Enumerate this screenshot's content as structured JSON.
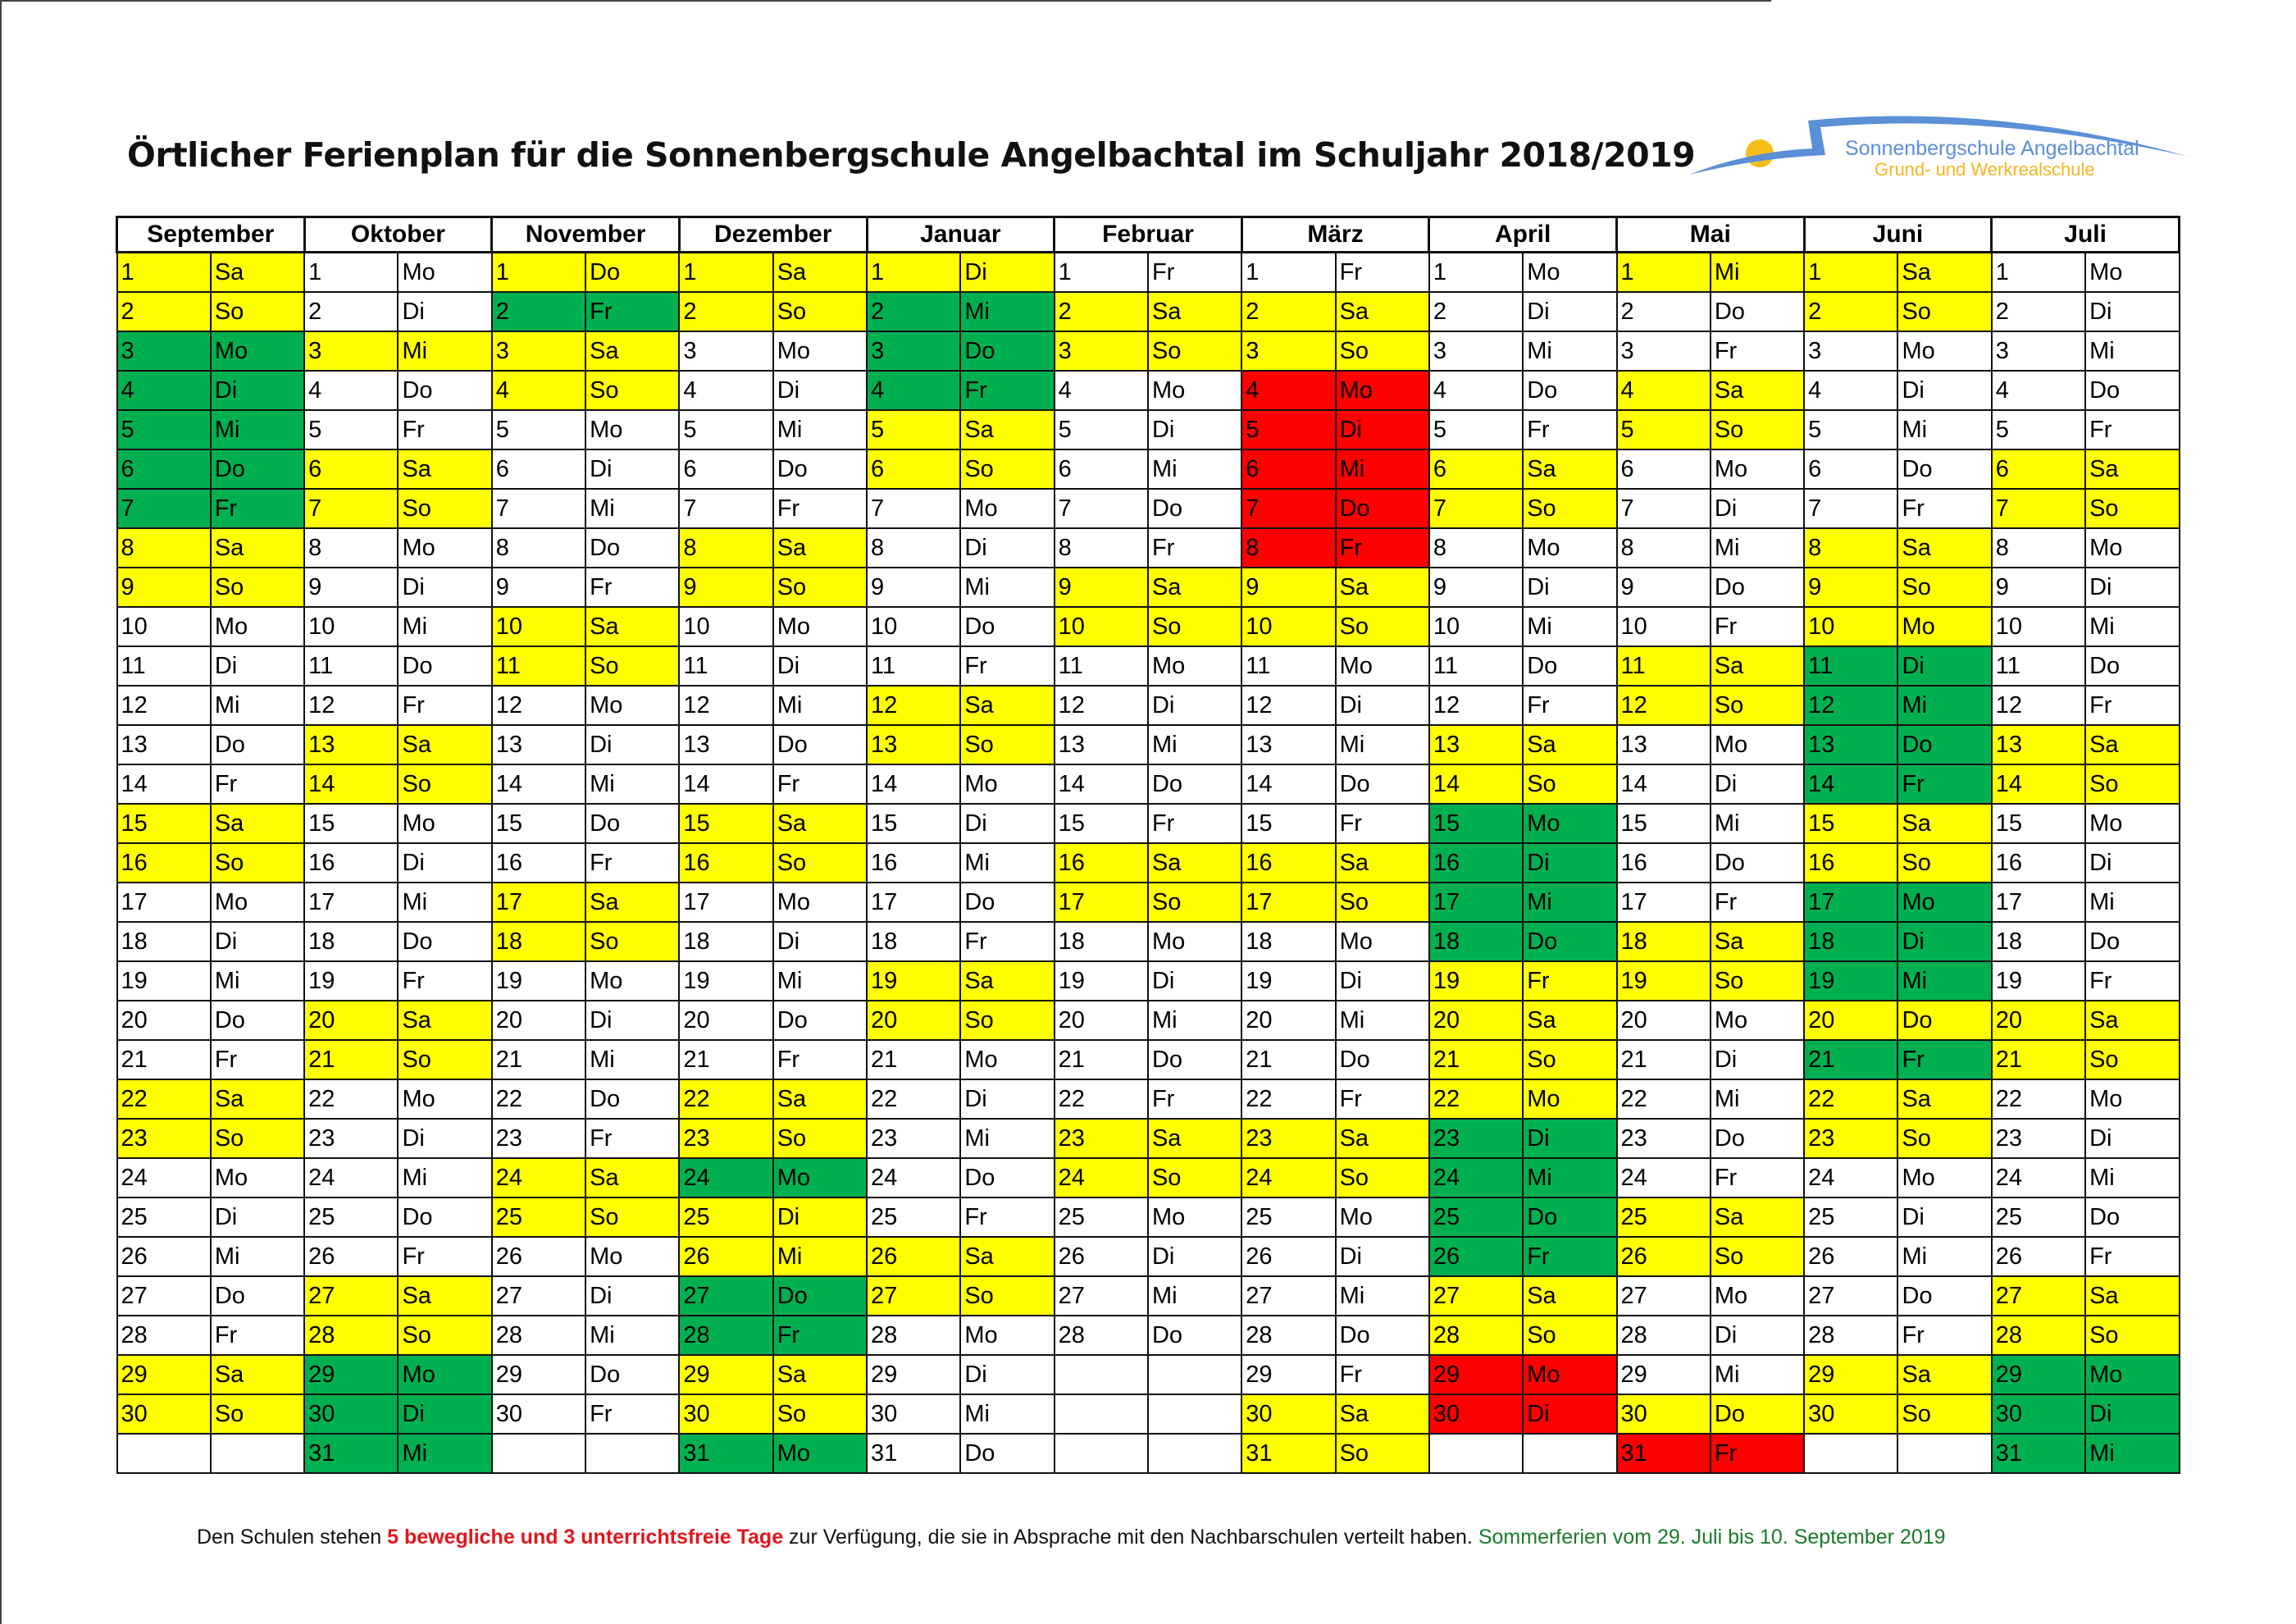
{
  "title": "Örtlicher Ferienplan für die Sonnenbergschule Angelbachtal im Schuljahr 2018/2019",
  "logo": {
    "line1": "Sonnenbergschule Angelbachtal",
    "line2": "Grund- und Werkrealschule"
  },
  "colors": {
    "Y": "#ffff00",
    "G": "#00b050",
    "R": "#ff0000",
    "W": "#ffffff"
  },
  "months": [
    {
      "name": "September",
      "start": "Sa",
      "days": 30,
      "colors": "YYGGGGGYYWWWWWYYWWWWWYYWWWWWYY"
    },
    {
      "name": "Oktober",
      "start": "Mo",
      "days": 31,
      "colors": "WWYWWYYWWWWWYYWWWWWYYWWWWWYYGGG"
    },
    {
      "name": "November",
      "start": "Do",
      "days": 30,
      "colors": "YGYYWWWWWYYWWWWWYYWWWWWYYWWWWW"
    },
    {
      "name": "Dezember",
      "start": "Sa",
      "days": 31,
      "colors": "YYWWWWWYYWWWWWYYWWWWWYYGYYGGYYG"
    },
    {
      "name": "Januar",
      "start": "Di",
      "days": 31,
      "colors": "YGGGYYWWWWWYYWWWWWYYWWWWWYYWWWW"
    },
    {
      "name": "Februar",
      "start": "Fr",
      "days": 28,
      "colors": "WYYWWWWWYYWWWWWYYWWWWWYYWWWW"
    },
    {
      "name": "März",
      "start": "Fr",
      "days": 31,
      "colors": "WYYRRRRRYYWWWWWYYWWWWWYYWWWWWYY"
    },
    {
      "name": "April",
      "start": "Mo",
      "days": 30,
      "colors": "WWWWWYYWWWWWYYGGGGYYYYGGGGYYRR"
    },
    {
      "name": "Mai",
      "start": "Mi",
      "days": 31,
      "colors": "YWWYYWWWWWYYWWWWWYYWWWWWYYWWWYR"
    },
    {
      "name": "Juni",
      "start": "Sa",
      "days": 30,
      "colors": "YYWWWWWYYYGGGGYYGGGYGYYWWWWWYY"
    },
    {
      "name": "Juli",
      "start": "Mo",
      "days": 31,
      "colors": "WWWWWYYWWWWWYYWWWWWYYWWWWWYYGGG"
    }
  ],
  "weekdays": [
    "Mo",
    "Di",
    "Mi",
    "Do",
    "Fr",
    "Sa",
    "So"
  ],
  "footer": {
    "part1": "Den Schulen stehen ",
    "highlight": "5 bewegliche und 3 unterrichtsfreie Tage",
    "part2": " zur Verfügung, die sie in Absprache mit den Nachbarschulen verteilt haben. ",
    "summer": "Sommerferien vom  29. Juli bis 10. September 2019"
  }
}
